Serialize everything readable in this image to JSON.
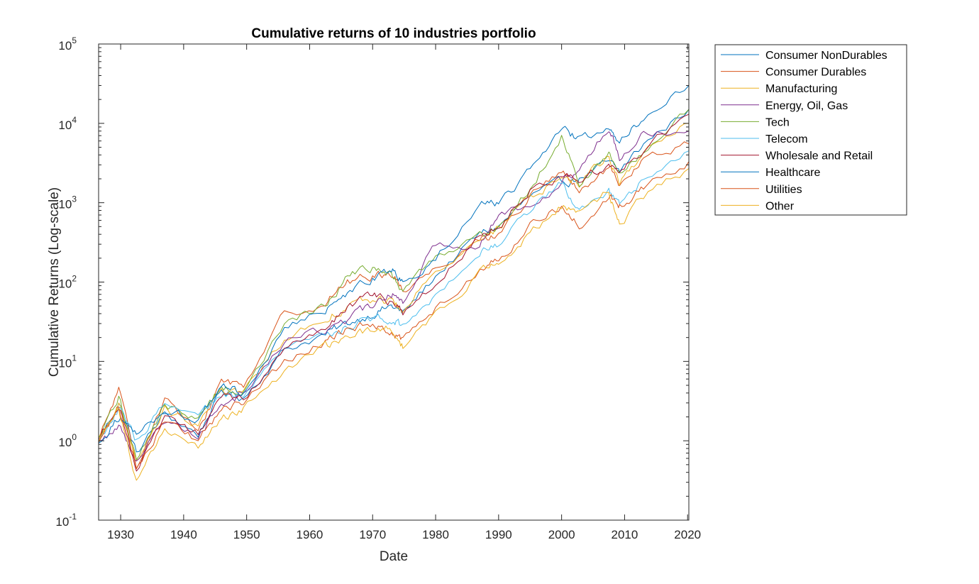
{
  "chart_data": {
    "type": "line",
    "title": "Cumulative returns of 10 industries portfolio",
    "xlabel": "Date",
    "ylabel": "Cumulative Returns (Log-scale)",
    "xlim": [
      1926.5,
      2020.2
    ],
    "ylim": [
      0.1,
      100000
    ],
    "yscale": "log",
    "grid": false,
    "legend_position": "outside-top-right",
    "x_ticks": [
      {
        "value": 1930,
        "label": "1930"
      },
      {
        "value": 1940,
        "label": "1940"
      },
      {
        "value": 1950,
        "label": "1950"
      },
      {
        "value": 1960,
        "label": "1960"
      },
      {
        "value": 1970,
        "label": "1970"
      },
      {
        "value": 1980,
        "label": "1980"
      },
      {
        "value": 1990,
        "label": "1990"
      },
      {
        "value": 2000,
        "label": "2000"
      },
      {
        "value": 2010,
        "label": "2010"
      },
      {
        "value": 2020,
        "label": "2020"
      }
    ],
    "y_ticks": [
      {
        "value": 0.1,
        "base": "10",
        "exp": "-1"
      },
      {
        "value": 1,
        "base": "10",
        "exp": "0"
      },
      {
        "value": 10,
        "base": "10",
        "exp": "1"
      },
      {
        "value": 100,
        "base": "10",
        "exp": "2"
      },
      {
        "value": 1000,
        "base": "10",
        "exp": "3"
      },
      {
        "value": 10000,
        "base": "10",
        "exp": "4"
      },
      {
        "value": 100000,
        "base": "10",
        "exp": "5"
      }
    ],
    "x": [
      1926.5,
      1929.7,
      1932.5,
      1937.0,
      1942.3,
      1946.0,
      1949.5,
      1956.0,
      1962.5,
      1966.0,
      1970.0,
      1973.0,
      1974.8,
      1980.0,
      1987.0,
      1990.0,
      1995.0,
      2000.0,
      2002.8,
      2007.5,
      2009.2,
      2013.0,
      2020.2
    ],
    "series": [
      {
        "name": "Consumer NonDurables",
        "color": "#0072BD",
        "values": [
          1.0,
          3.0,
          0.7,
          2.2,
          1.2,
          4.2,
          3.5,
          14,
          22,
          30,
          40,
          50,
          40,
          120,
          400,
          500,
          1200,
          1800,
          2000,
          3200,
          2500,
          5500,
          15000
        ]
      },
      {
        "name": "Consumer Durables",
        "color": "#D95319",
        "values": [
          1.0,
          4.5,
          0.5,
          3.5,
          1.2,
          6.0,
          5.0,
          40,
          55,
          100,
          120,
          130,
          80,
          150,
          350,
          400,
          1200,
          2500,
          1300,
          2800,
          1500,
          3500,
          5500
        ]
      },
      {
        "name": "Manufacturing",
        "color": "#EDB120",
        "values": [
          1.0,
          3.0,
          0.5,
          2.5,
          1.5,
          4.5,
          4.0,
          20,
          35,
          50,
          60,
          60,
          40,
          150,
          350,
          450,
          1200,
          2100,
          1800,
          4000,
          1700,
          4500,
          10000
        ]
      },
      {
        "name": "Energy, Oil, Gas",
        "color": "#7E2F8E",
        "values": [
          1.0,
          1.5,
          0.6,
          1.8,
          1.2,
          3.0,
          4.0,
          18,
          25,
          35,
          50,
          70,
          60,
          300,
          300,
          700,
          1000,
          1800,
          2500,
          9000,
          4000,
          8000,
          8000
        ]
      },
      {
        "name": "Tech",
        "color": "#77AC30",
        "values": [
          1.0,
          3.5,
          0.6,
          2.8,
          1.8,
          5.0,
          4.0,
          30,
          50,
          120,
          150,
          120,
          80,
          200,
          400,
          500,
          1500,
          7000,
          1800,
          4000,
          2200,
          4500,
          15000
        ]
      },
      {
        "name": "Telecom",
        "color": "#4DBEEE",
        "values": [
          1.0,
          2.5,
          1.0,
          2.8,
          2.0,
          3.5,
          3.5,
          14,
          22,
          28,
          35,
          35,
          28,
          70,
          250,
          300,
          800,
          1800,
          800,
          1500,
          1000,
          2000,
          4500
        ]
      },
      {
        "name": "Wholesale and Retail",
        "color": "#A2142F",
        "values": [
          1.0,
          3.0,
          0.4,
          1.8,
          1.2,
          3.5,
          3.5,
          14,
          28,
          45,
          70,
          55,
          40,
          100,
          400,
          500,
          1500,
          2200,
          2000,
          3000,
          2200,
          5000,
          13000
        ]
      },
      {
        "name": "Healthcare",
        "color": "#0072BD",
        "values": [
          1.0,
          2.0,
          1.2,
          2.5,
          1.8,
          5.0,
          4.0,
          25,
          45,
          70,
          110,
          150,
          100,
          200,
          1000,
          1000,
          2500,
          8000,
          6500,
          8000,
          6000,
          12000,
          30000
        ]
      },
      {
        "name": "Utilities",
        "color": "#D95319",
        "values": [
          1.0,
          2.8,
          0.5,
          1.7,
          1.0,
          2.5,
          3.0,
          10,
          18,
          25,
          30,
          25,
          18,
          45,
          150,
          200,
          500,
          900,
          500,
          1200,
          900,
          1500,
          3300
        ]
      },
      {
        "name": "Other",
        "color": "#EDB120",
        "values": [
          1.0,
          2.5,
          0.3,
          1.4,
          0.8,
          2.0,
          2.5,
          7,
          15,
          20,
          25,
          25,
          15,
          40,
          130,
          180,
          400,
          900,
          700,
          1400,
          500,
          1200,
          2700
        ]
      }
    ]
  }
}
